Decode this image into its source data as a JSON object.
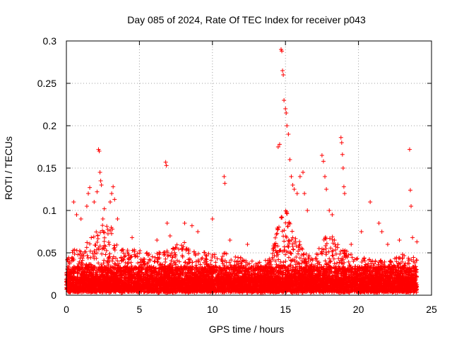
{
  "chart_data": {
    "type": "scatter",
    "title": "Day 085 of 2024, Rate Of TEC Index for receiver p043",
    "xlabel": "GPS time / hours",
    "ylabel": "ROTI / TECUs",
    "xlim": [
      0,
      25
    ],
    "ylim": [
      0,
      0.3
    ],
    "xticks": [
      "0",
      "5",
      "10",
      "15",
      "20",
      "25"
    ],
    "yticks": [
      "0",
      "0.05",
      "0.1",
      "0.15",
      "0.2",
      "0.25",
      "0.3"
    ],
    "grid": true,
    "marker": "+",
    "series": [
      {
        "name": "ROTI",
        "color": "#ff0000",
        "dense_band": {
          "x_range": [
            0,
            24
          ],
          "y_range": [
            0.0,
            0.03
          ]
        },
        "envelope": [
          [
            0.0,
            0.04
          ],
          [
            0.5,
            0.05
          ],
          [
            1.0,
            0.05
          ],
          [
            1.5,
            0.06
          ],
          [
            2.0,
            0.07
          ],
          [
            2.5,
            0.08
          ],
          [
            3.0,
            0.08
          ],
          [
            3.5,
            0.06
          ],
          [
            4.0,
            0.05
          ],
          [
            5.0,
            0.05
          ],
          [
            6.0,
            0.045
          ],
          [
            7.0,
            0.05
          ],
          [
            8.0,
            0.06
          ],
          [
            9.0,
            0.045
          ],
          [
            10.0,
            0.05
          ],
          [
            11.0,
            0.045
          ],
          [
            12.0,
            0.04
          ],
          [
            13.0,
            0.035
          ],
          [
            14.0,
            0.04
          ],
          [
            14.5,
            0.08
          ],
          [
            15.0,
            0.1
          ],
          [
            15.5,
            0.07
          ],
          [
            16.0,
            0.06
          ],
          [
            16.5,
            0.045
          ],
          [
            17.0,
            0.04
          ],
          [
            17.5,
            0.06
          ],
          [
            18.0,
            0.07
          ],
          [
            18.5,
            0.06
          ],
          [
            19.0,
            0.05
          ],
          [
            20.0,
            0.04
          ],
          [
            21.0,
            0.04
          ],
          [
            22.0,
            0.035
          ],
          [
            23.0,
            0.045
          ],
          [
            24.0,
            0.04
          ]
        ],
        "peaks": [
          [
            0.5,
            0.11
          ],
          [
            0.7,
            0.095
          ],
          [
            1.0,
            0.09
          ],
          [
            1.4,
            0.105
          ],
          [
            1.5,
            0.12
          ],
          [
            1.6,
            0.127
          ],
          [
            1.9,
            0.11
          ],
          [
            2.1,
            0.122
          ],
          [
            2.2,
            0.172
          ],
          [
            2.25,
            0.17
          ],
          [
            2.3,
            0.145
          ],
          [
            2.35,
            0.135
          ],
          [
            2.4,
            0.13
          ],
          [
            2.5,
            0.09
          ],
          [
            2.6,
            0.102
          ],
          [
            3.0,
            0.11
          ],
          [
            3.1,
            0.12
          ],
          [
            3.2,
            0.128
          ],
          [
            3.3,
            0.113
          ],
          [
            3.5,
            0.09
          ],
          [
            4.5,
            0.068
          ],
          [
            6.2,
            0.065
          ],
          [
            6.8,
            0.157
          ],
          [
            6.85,
            0.153
          ],
          [
            6.9,
            0.085
          ],
          [
            7.1,
            0.07
          ],
          [
            8.1,
            0.085
          ],
          [
            8.6,
            0.082
          ],
          [
            9.0,
            0.075
          ],
          [
            10.0,
            0.09
          ],
          [
            10.8,
            0.14
          ],
          [
            10.85,
            0.132
          ],
          [
            11.2,
            0.065
          ],
          [
            12.4,
            0.06
          ],
          [
            14.5,
            0.175
          ],
          [
            14.6,
            0.178
          ],
          [
            14.7,
            0.29
          ],
          [
            14.75,
            0.288
          ],
          [
            14.8,
            0.265
          ],
          [
            14.85,
            0.26
          ],
          [
            14.9,
            0.23
          ],
          [
            15.0,
            0.22
          ],
          [
            15.05,
            0.215
          ],
          [
            15.1,
            0.2
          ],
          [
            15.2,
            0.19
          ],
          [
            15.3,
            0.16
          ],
          [
            15.4,
            0.14
          ],
          [
            15.5,
            0.13
          ],
          [
            15.6,
            0.125
          ],
          [
            15.8,
            0.12
          ],
          [
            16.0,
            0.14
          ],
          [
            16.2,
            0.145
          ],
          [
            16.3,
            0.12
          ],
          [
            16.5,
            0.1
          ],
          [
            17.5,
            0.165
          ],
          [
            17.6,
            0.158
          ],
          [
            17.7,
            0.14
          ],
          [
            17.8,
            0.125
          ],
          [
            18.0,
            0.1
          ],
          [
            18.2,
            0.095
          ],
          [
            18.8,
            0.186
          ],
          [
            18.85,
            0.18
          ],
          [
            18.9,
            0.166
          ],
          [
            18.95,
            0.15
          ],
          [
            19.0,
            0.128
          ],
          [
            19.05,
            0.12
          ],
          [
            19.5,
            0.06
          ],
          [
            20.2,
            0.075
          ],
          [
            20.8,
            0.11
          ],
          [
            21.4,
            0.085
          ],
          [
            21.6,
            0.075
          ],
          [
            22.0,
            0.06
          ],
          [
            22.8,
            0.065
          ],
          [
            23.5,
            0.172
          ],
          [
            23.55,
            0.124
          ],
          [
            23.6,
            0.105
          ],
          [
            23.7,
            0.068
          ],
          [
            24.0,
            0.063
          ]
        ]
      }
    ]
  }
}
